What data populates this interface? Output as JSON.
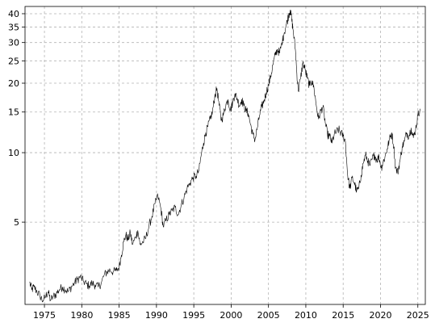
{
  "chart_data": {
    "type": "line",
    "title": "",
    "xlabel": "",
    "ylabel": "",
    "y_scale": "log",
    "grid": true,
    "xlim": [
      1972.4,
      2026.0
    ],
    "ylim": [
      2.2,
      43
    ],
    "x_ticks": [
      1975,
      1980,
      1985,
      1990,
      1995,
      2000,
      2005,
      2010,
      2015,
      2020,
      2025
    ],
    "x_tick_labels": [
      "1975",
      "1980",
      "1985",
      "1990",
      "1995",
      "2000",
      "2005",
      "2010",
      "2015",
      "2020",
      "2025"
    ],
    "y_ticks": [
      5,
      10,
      15,
      20,
      25,
      30,
      35,
      40
    ],
    "y_tick_labels": [
      "5",
      "10",
      "15",
      "20",
      "25",
      "30",
      "35",
      "40"
    ],
    "series": [
      {
        "color": "#000000",
        "points": [
          [
            1973.0,
            2.75
          ],
          [
            1973.3,
            2.55
          ],
          [
            1973.6,
            2.62
          ],
          [
            1974.0,
            2.5
          ],
          [
            1974.4,
            2.4
          ],
          [
            1974.8,
            2.28
          ],
          [
            1975.2,
            2.4
          ],
          [
            1975.5,
            2.5
          ],
          [
            1975.8,
            2.3
          ],
          [
            1976.2,
            2.38
          ],
          [
            1976.6,
            2.45
          ],
          [
            1977.0,
            2.55
          ],
          [
            1977.4,
            2.62
          ],
          [
            1977.8,
            2.55
          ],
          [
            1978.2,
            2.5
          ],
          [
            1978.6,
            2.62
          ],
          [
            1979.0,
            2.72
          ],
          [
            1979.4,
            2.82
          ],
          [
            1979.8,
            2.9
          ],
          [
            1980.2,
            2.78
          ],
          [
            1980.6,
            2.7
          ],
          [
            1981.0,
            2.65
          ],
          [
            1981.4,
            2.72
          ],
          [
            1981.8,
            2.67
          ],
          [
            1982.2,
            2.62
          ],
          [
            1982.6,
            2.72
          ],
          [
            1983.0,
            2.95
          ],
          [
            1983.4,
            3.05
          ],
          [
            1983.8,
            3.1
          ],
          [
            1984.2,
            3.05
          ],
          [
            1984.6,
            3.08
          ],
          [
            1985.0,
            3.2
          ],
          [
            1985.3,
            3.6
          ],
          [
            1985.6,
            4.1
          ],
          [
            1985.9,
            4.4
          ],
          [
            1986.2,
            4.2
          ],
          [
            1986.5,
            4.5
          ],
          [
            1986.8,
            4.0
          ],
          [
            1987.2,
            4.3
          ],
          [
            1987.5,
            4.6
          ],
          [
            1987.8,
            4.0
          ],
          [
            1988.2,
            4.1
          ],
          [
            1988.6,
            4.3
          ],
          [
            1989.0,
            4.8
          ],
          [
            1989.4,
            5.3
          ],
          [
            1989.8,
            6.0
          ],
          [
            1990.2,
            6.5
          ],
          [
            1990.6,
            5.7
          ],
          [
            1990.9,
            4.8
          ],
          [
            1991.3,
            5.1
          ],
          [
            1991.7,
            5.4
          ],
          [
            1992.1,
            5.6
          ],
          [
            1992.5,
            5.8
          ],
          [
            1992.9,
            5.4
          ],
          [
            1993.3,
            5.9
          ],
          [
            1993.7,
            6.4
          ],
          [
            1994.1,
            7.0
          ],
          [
            1994.5,
            7.4
          ],
          [
            1994.9,
            7.8
          ],
          [
            1995.3,
            7.9
          ],
          [
            1995.7,
            8.4
          ],
          [
            1996.0,
            9.8
          ],
          [
            1996.3,
            11.0
          ],
          [
            1996.6,
            12.2
          ],
          [
            1996.9,
            13.0
          ],
          [
            1997.2,
            14.0
          ],
          [
            1997.5,
            15.0
          ],
          [
            1997.8,
            17.5
          ],
          [
            1998.1,
            19.0
          ],
          [
            1998.4,
            16.0
          ],
          [
            1998.7,
            13.8
          ],
          [
            1999.0,
            14.8
          ],
          [
            1999.3,
            16.2
          ],
          [
            1999.6,
            17.0
          ],
          [
            1999.9,
            15.2
          ],
          [
            2000.2,
            16.5
          ],
          [
            2000.5,
            18.0
          ],
          [
            2000.8,
            17.2
          ],
          [
            2001.1,
            16.0
          ],
          [
            2001.4,
            17.0
          ],
          [
            2001.7,
            16.0
          ],
          [
            2002.0,
            15.2
          ],
          [
            2002.3,
            14.8
          ],
          [
            2002.6,
            13.2
          ],
          [
            2002.9,
            12.0
          ],
          [
            2003.2,
            11.4
          ],
          [
            2003.5,
            12.8
          ],
          [
            2003.8,
            14.5
          ],
          [
            2004.1,
            15.8
          ],
          [
            2004.4,
            16.8
          ],
          [
            2004.7,
            18.2
          ],
          [
            2005.0,
            19.6
          ],
          [
            2005.3,
            21.5
          ],
          [
            2005.6,
            24.0
          ],
          [
            2005.9,
            26.5
          ],
          [
            2006.2,
            28.0
          ],
          [
            2006.5,
            27.0
          ],
          [
            2006.8,
            30.0
          ],
          [
            2007.1,
            33.0
          ],
          [
            2007.4,
            36.0
          ],
          [
            2007.7,
            39.5
          ],
          [
            2007.9,
            41.5
          ],
          [
            2008.1,
            38.0
          ],
          [
            2008.3,
            34.0
          ],
          [
            2008.6,
            28.0
          ],
          [
            2008.8,
            22.0
          ],
          [
            2009.0,
            18.5
          ],
          [
            2009.3,
            21.0
          ],
          [
            2009.6,
            24.5
          ],
          [
            2009.9,
            23.0
          ],
          [
            2010.2,
            21.0
          ],
          [
            2010.5,
            19.5
          ],
          [
            2010.8,
            20.5
          ],
          [
            2011.1,
            19.0
          ],
          [
            2011.4,
            16.0
          ],
          [
            2011.7,
            14.0
          ],
          [
            2012.0,
            15.2
          ],
          [
            2012.3,
            15.8
          ],
          [
            2012.6,
            13.5
          ],
          [
            2012.9,
            12.0
          ],
          [
            2013.2,
            11.8
          ],
          [
            2013.5,
            11.0
          ],
          [
            2013.8,
            12.0
          ],
          [
            2014.1,
            12.3
          ],
          [
            2014.4,
            12.6
          ],
          [
            2014.7,
            12.2
          ],
          [
            2015.0,
            11.8
          ],
          [
            2015.3,
            11.2
          ],
          [
            2015.6,
            8.0
          ],
          [
            2015.9,
            7.0
          ],
          [
            2016.2,
            7.8
          ],
          [
            2016.5,
            7.4
          ],
          [
            2016.8,
            6.8
          ],
          [
            2017.1,
            7.0
          ],
          [
            2017.4,
            8.0
          ],
          [
            2017.7,
            9.0
          ],
          [
            2018.0,
            9.8
          ],
          [
            2018.3,
            9.2
          ],
          [
            2018.6,
            8.8
          ],
          [
            2018.9,
            9.4
          ],
          [
            2019.2,
            9.8
          ],
          [
            2019.5,
            9.3
          ],
          [
            2019.8,
            9.6
          ],
          [
            2020.1,
            8.6
          ],
          [
            2020.3,
            9.0
          ],
          [
            2020.6,
            9.6
          ],
          [
            2020.9,
            10.4
          ],
          [
            2021.2,
            11.4
          ],
          [
            2021.5,
            12.2
          ],
          [
            2021.8,
            10.6
          ],
          [
            2022.0,
            8.6
          ],
          [
            2022.3,
            8.2
          ],
          [
            2022.6,
            9.2
          ],
          [
            2022.9,
            10.6
          ],
          [
            2023.2,
            11.2
          ],
          [
            2023.5,
            12.2
          ],
          [
            2023.8,
            11.8
          ],
          [
            2024.1,
            12.8
          ],
          [
            2024.4,
            11.6
          ],
          [
            2024.7,
            12.6
          ],
          [
            2025.0,
            14.5
          ],
          [
            2025.3,
            15.5
          ]
        ]
      }
    ]
  }
}
